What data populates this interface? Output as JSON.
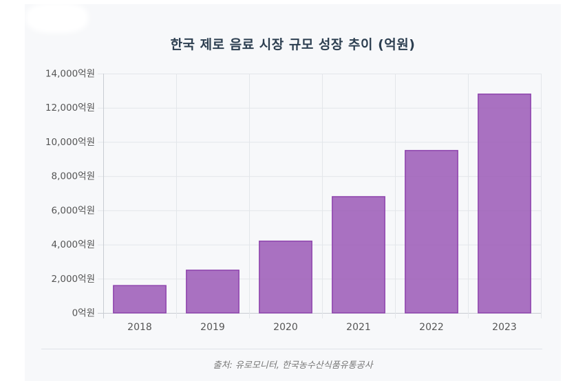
{
  "chart_data": {
    "type": "bar",
    "title": "한국 제로 음료 시장 규모 성장 추이 (억원)",
    "categories": [
      "2018",
      "2019",
      "2020",
      "2021",
      "2022",
      "2023"
    ],
    "values": [
      1600,
      2500,
      4200,
      6800,
      9500,
      12800
    ],
    "ylim": [
      0,
      14000
    ],
    "yticks": [
      0,
      2000,
      4000,
      6000,
      8000,
      10000,
      12000,
      14000
    ],
    "ytick_labels": [
      "0억원",
      "2,000억원",
      "4,000억원",
      "6,000억원",
      "8,000억원",
      "10,000억원",
      "12,000억원",
      "14,000억원"
    ],
    "grid": true,
    "bar_color": "#9b59b6"
  },
  "source": "출처: 유로모니터, 한국농수산식품유통공사"
}
